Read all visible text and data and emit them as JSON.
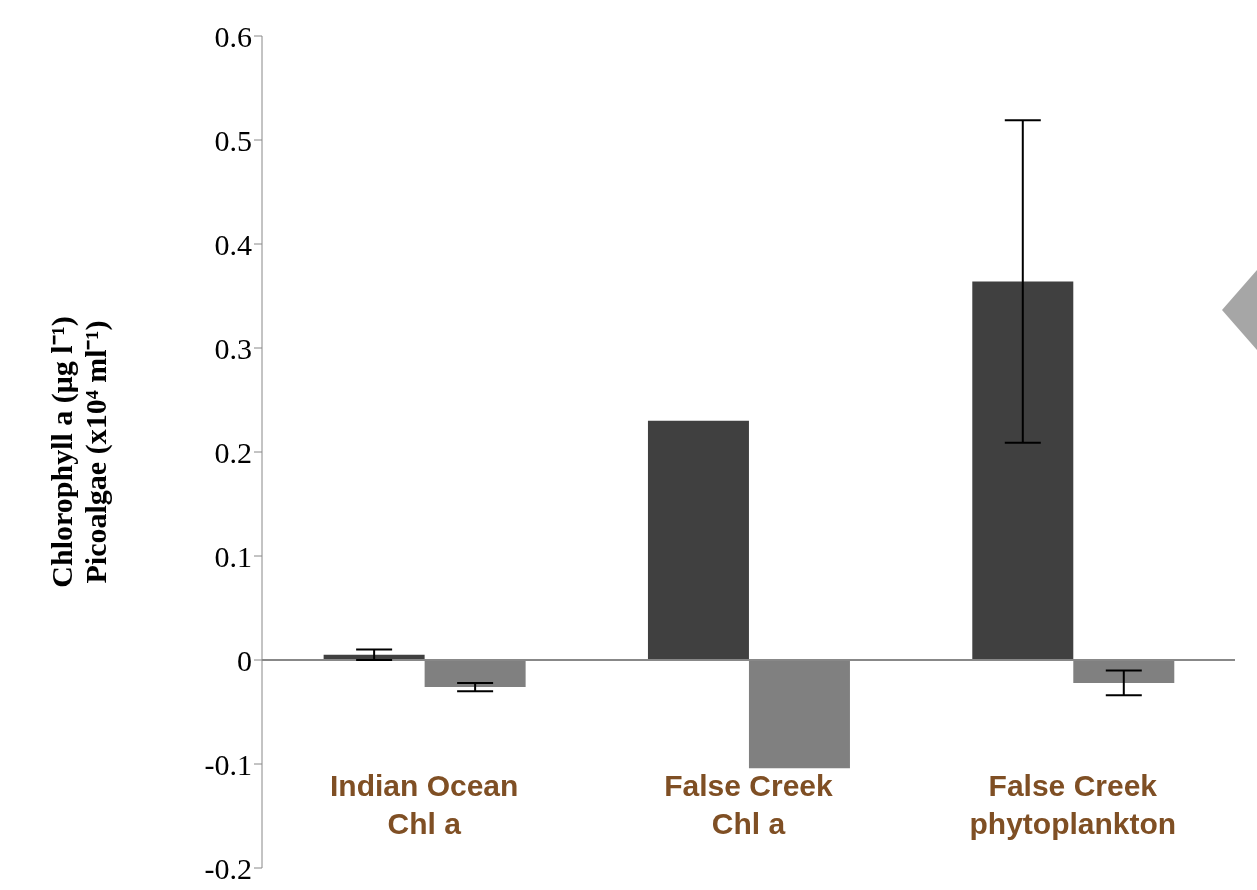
{
  "chart_data": {
    "type": "bar",
    "ylabel": "Chlorophyll a (μg l⁻¹)\nPicoalgae (x10⁴ ml⁻¹)",
    "categories": [
      "Indian Ocean\nChl a",
      "False Creek\nChl a",
      "False Creek\nphytoplankton"
    ],
    "series": [
      {
        "color": "#404040",
        "values": [
          0.005,
          0.23,
          0.364
        ],
        "errors": [
          0.005,
          null,
          0.155
        ]
      },
      {
        "color": "#808080",
        "values": [
          -0.026,
          -0.104,
          -0.022
        ],
        "errors": [
          0.004,
          null,
          0.012
        ]
      }
    ],
    "ylim": [
      -0.2,
      0.6
    ],
    "yticks": [
      -0.2,
      -0.1,
      0,
      0.1,
      0.2,
      0.3,
      0.4,
      0.5,
      0.6
    ],
    "ref_lines": [
      {
        "axis": "y",
        "value": 0,
        "color": "#888888"
      }
    ],
    "grid": false,
    "legend": false
  }
}
